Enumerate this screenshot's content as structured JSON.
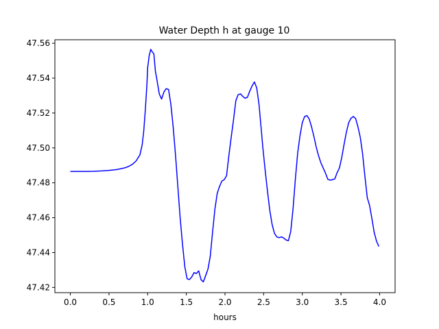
{
  "chart_data": {
    "type": "line",
    "title": "Water Depth h at gauge 10",
    "xlabel": "hours",
    "ylabel": "",
    "xlim": [
      -0.2,
      4.2
    ],
    "ylim": [
      47.417,
      47.562
    ],
    "xticks": [
      0.0,
      0.5,
      1.0,
      1.5,
      2.0,
      2.5,
      3.0,
      3.5,
      4.0
    ],
    "xtick_labels": [
      "0.0",
      "0.5",
      "1.0",
      "1.5",
      "2.0",
      "2.5",
      "3.0",
      "3.5",
      "4.0"
    ],
    "yticks": [
      47.42,
      47.44,
      47.46,
      47.48,
      47.5,
      47.52,
      47.54,
      47.56
    ],
    "ytick_labels": [
      "47.42",
      "47.44",
      "47.46",
      "47.48",
      "47.50",
      "47.52",
      "47.54",
      "47.56"
    ],
    "grid": false,
    "series": [
      {
        "color": "#0000ff",
        "x": [
          0.0,
          0.1,
          0.2,
          0.3,
          0.4,
          0.5,
          0.6,
          0.7,
          0.75,
          0.8,
          0.85,
          0.9,
          0.93,
          0.95,
          0.97,
          0.99,
          1.0,
          1.02,
          1.04,
          1.06,
          1.08,
          1.1,
          1.12,
          1.15,
          1.18,
          1.21,
          1.24,
          1.27,
          1.3,
          1.33,
          1.36,
          1.39,
          1.42,
          1.45,
          1.48,
          1.51,
          1.54,
          1.57,
          1.6,
          1.63,
          1.66,
          1.69,
          1.72,
          1.75,
          1.78,
          1.81,
          1.84,
          1.87,
          1.9,
          1.93,
          1.96,
          1.99,
          2.02,
          2.05,
          2.08,
          2.11,
          2.14,
          2.17,
          2.2,
          2.23,
          2.26,
          2.29,
          2.32,
          2.35,
          2.38,
          2.41,
          2.44,
          2.46,
          2.49,
          2.52,
          2.55,
          2.58,
          2.61,
          2.64,
          2.67,
          2.7,
          2.73,
          2.76,
          2.79,
          2.82,
          2.85,
          2.88,
          2.91,
          2.94,
          2.97,
          3.0,
          3.03,
          3.06,
          3.09,
          3.12,
          3.15,
          3.18,
          3.21,
          3.24,
          3.27,
          3.3,
          3.33,
          3.36,
          3.39,
          3.42,
          3.45,
          3.48,
          3.51,
          3.54,
          3.57,
          3.6,
          3.63,
          3.66,
          3.69,
          3.72,
          3.75,
          3.78,
          3.81,
          3.84,
          3.87,
          3.9,
          3.93,
          3.96,
          3.99
        ],
        "y": [
          47.4865,
          47.4865,
          47.4865,
          47.4866,
          47.4868,
          47.4871,
          47.4876,
          47.4885,
          47.4893,
          47.4905,
          47.4925,
          47.496,
          47.502,
          47.51,
          47.522,
          47.536,
          47.546,
          47.553,
          47.5565,
          47.555,
          47.554,
          47.544,
          47.539,
          47.531,
          47.528,
          47.532,
          47.534,
          47.5335,
          47.525,
          47.512,
          47.496,
          47.478,
          47.46,
          47.445,
          47.432,
          47.425,
          47.4245,
          47.426,
          47.4285,
          47.428,
          47.4295,
          47.4245,
          47.4232,
          47.4268,
          47.4305,
          47.438,
          47.452,
          47.465,
          47.474,
          47.478,
          47.481,
          47.4818,
          47.484,
          47.4955,
          47.506,
          47.516,
          47.527,
          47.5305,
          47.531,
          47.5295,
          47.5285,
          47.529,
          47.5325,
          47.5355,
          47.5378,
          47.5345,
          47.525,
          47.515,
          47.5,
          47.487,
          47.475,
          47.464,
          47.456,
          47.451,
          47.449,
          47.4485,
          47.449,
          47.4483,
          47.4472,
          47.4468,
          47.452,
          47.465,
          47.482,
          47.497,
          47.507,
          47.5145,
          47.518,
          47.5185,
          47.5165,
          47.512,
          47.5065,
          47.5005,
          47.4955,
          47.4915,
          47.4885,
          47.4855,
          47.482,
          47.4815,
          47.4818,
          47.4822,
          47.4858,
          47.4885,
          47.4945,
          47.502,
          47.509,
          47.5145,
          47.517,
          47.518,
          47.5168,
          47.512,
          47.506,
          47.4965,
          47.4835,
          47.4715,
          47.467,
          47.4595,
          47.4515,
          47.4465,
          47.4435
        ]
      }
    ]
  }
}
